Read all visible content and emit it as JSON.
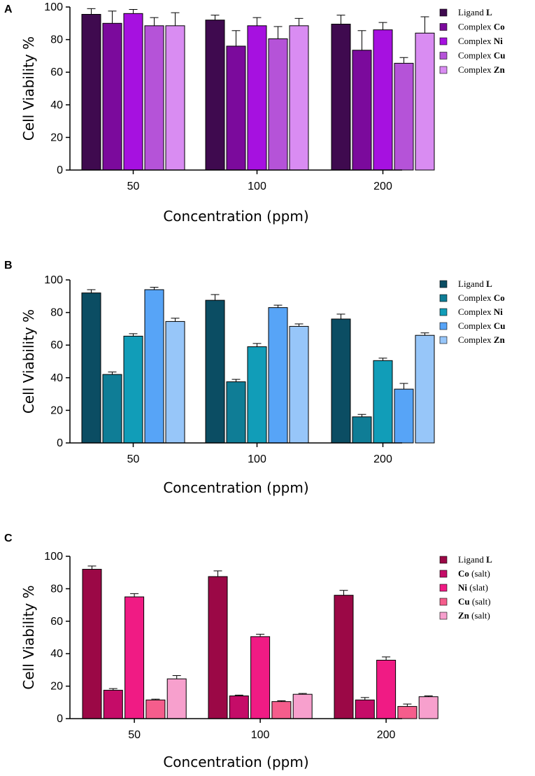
{
  "chart_data": [
    {
      "type": "bar",
      "panel": "A",
      "categories": [
        "50",
        "100",
        "200"
      ],
      "series": [
        {
          "name": "Ligand L",
          "legend_plain": "Ligand ",
          "legend_bold": "L",
          "color": "#3f0a4f",
          "values": [
            95.5,
            92,
            89.5
          ],
          "errors": [
            3.5,
            3,
            5.5
          ]
        },
        {
          "name": "Complex Co",
          "legend_plain": "Complex ",
          "legend_bold": "Co",
          "color": "#7b0a9c",
          "values": [
            90,
            76,
            73.5
          ],
          "errors": [
            7.5,
            9.5,
            12
          ]
        },
        {
          "name": "Complex Ni",
          "legend_plain": "Complex ",
          "legend_bold": "Ni",
          "color": "#a611e0",
          "values": [
            96,
            88.5,
            86
          ],
          "errors": [
            2.5,
            5,
            4.5
          ]
        },
        {
          "name": "Complex Cu",
          "legend_plain": "Complex ",
          "legend_bold": "Cu",
          "color": "#b553d8",
          "values": [
            88.5,
            80.5,
            65.5
          ],
          "errors": [
            5,
            7.5,
            3.5
          ]
        },
        {
          "name": "Complex Zn",
          "legend_plain": "Complex ",
          "legend_bold": "Zn",
          "color": "#d98cf2",
          "values": [
            88.5,
            88.5,
            84
          ],
          "errors": [
            8,
            4.5,
            10
          ]
        }
      ],
      "xlabel": "Concentration (ppm)",
      "ylabel": "Cell Viability %",
      "ylim": [
        0,
        100
      ],
      "yticks": [
        0,
        20,
        40,
        60,
        80,
        100
      ],
      "legend": "right"
    },
    {
      "type": "bar",
      "panel": "B",
      "categories": [
        "50",
        "100",
        "200"
      ],
      "series": [
        {
          "name": "Ligand L",
          "legend_plain": "Ligand ",
          "legend_bold": "L",
          "color": "#0b4d63",
          "values": [
            92,
            87.5,
            76
          ],
          "errors": [
            2,
            3.5,
            3
          ]
        },
        {
          "name": "Complex Co",
          "legend_plain": "Complex ",
          "legend_bold": "Co",
          "color": "#0f7d96",
          "values": [
            42,
            37.5,
            16
          ],
          "errors": [
            1.5,
            1.5,
            1.5
          ]
        },
        {
          "name": "Complex Ni",
          "legend_plain": "Complex ",
          "legend_bold": "Ni",
          "color": "#119db8",
          "values": [
            65.5,
            59,
            50.5
          ],
          "errors": [
            1.5,
            2,
            1.5
          ]
        },
        {
          "name": "Complex Cu",
          "legend_plain": "Complex ",
          "legend_bold": "Cu",
          "color": "#57a4f7",
          "values": [
            94,
            83,
            33
          ],
          "errors": [
            1.5,
            1.5,
            3.5
          ]
        },
        {
          "name": "Complex Zn",
          "legend_plain": "Complex ",
          "legend_bold": "Zn",
          "color": "#97c6f9",
          "values": [
            74.5,
            71.5,
            66
          ],
          "errors": [
            2,
            1.5,
            1.5
          ]
        }
      ],
      "xlabel": "Concentration (ppm)",
      "ylabel": "Cell Viability %",
      "ylim": [
        0,
        100
      ],
      "yticks": [
        0,
        20,
        40,
        60,
        80,
        100
      ],
      "legend": "right"
    },
    {
      "type": "bar",
      "panel": "C",
      "categories": [
        "50",
        "100",
        "200"
      ],
      "series": [
        {
          "name": "Ligand L",
          "legend_plain": "Ligand ",
          "legend_bold": "L",
          "legend_order": "plain-first",
          "color": "#9b0846",
          "values": [
            92,
            87.5,
            76
          ],
          "errors": [
            2,
            3.5,
            3
          ]
        },
        {
          "name": "Co (salt)",
          "legend_plain": " (salt)",
          "legend_bold": "Co",
          "legend_order": "bold-first",
          "color": "#c50c68",
          "values": [
            17.5,
            14,
            11.5
          ],
          "errors": [
            1,
            0.5,
            1.5
          ]
        },
        {
          "name": "Ni (slat)",
          "legend_plain": " (slat)",
          "legend_bold": "Ni",
          "legend_order": "bold-first",
          "color": "#f01b84",
          "values": [
            75,
            50.5,
            36
          ],
          "errors": [
            2,
            1.5,
            2
          ]
        },
        {
          "name": "Cu (salt)",
          "legend_plain": " (salt)",
          "legend_bold": "Cu",
          "legend_order": "bold-first",
          "color": "#f55d8c",
          "values": [
            11.5,
            10.5,
            7.5
          ],
          "errors": [
            0.5,
            0.5,
            1.5
          ]
        },
        {
          "name": "Zn (salt)",
          "legend_plain": " (salt)",
          "legend_bold": "Zn",
          "legend_order": "bold-first",
          "color": "#f7a0cd",
          "values": [
            24.5,
            15,
            13.5
          ],
          "errors": [
            2,
            0.5,
            0.5
          ]
        }
      ],
      "xlabel": "Concentration (ppm)",
      "ylabel": "Cell Viability %",
      "ylim": [
        0,
        100
      ],
      "yticks": [
        0,
        20,
        40,
        60,
        80,
        100
      ],
      "legend": "right"
    }
  ]
}
